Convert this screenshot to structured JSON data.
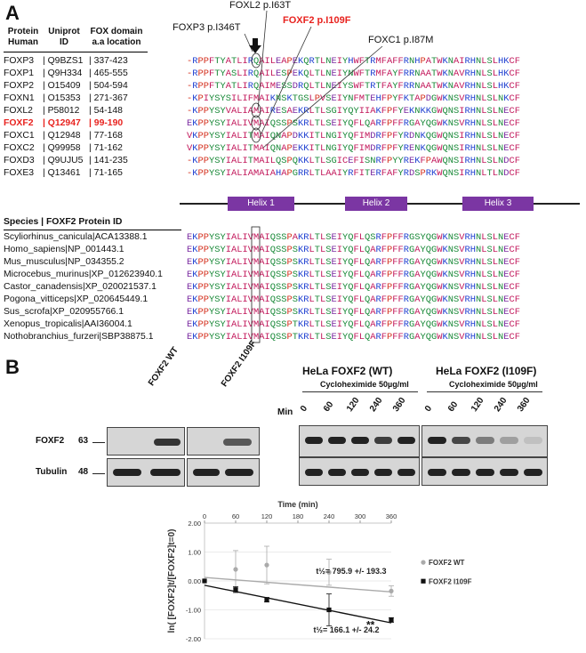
{
  "panel_a": {
    "letter": "A",
    "table_header": {
      "col1": "Protein\nHuman",
      "col2": "Uniprot\nID",
      "col3": "FOX domain\na.a location"
    },
    "proteins": [
      {
        "name": "FOXP3",
        "uniprot": "Q9BZS1",
        "loc": "337-423",
        "seq": "-RPPFTYATLIRQAILEAPEKQRTLNEIYHWFTRMFAFFRNHPATWKNAIRHNLSLHKCF",
        "highlight": false
      },
      {
        "name": "FOXP1",
        "uniprot": "Q9H334",
        "loc": "465-555",
        "seq": "-RPPFTYASLIRQAILESPEKQLTLNEIYNWFTRMFAYFRRNAATWKNAVRHNLSLHKCF",
        "highlight": false
      },
      {
        "name": "FOXP2",
        "uniprot": "O15409",
        "loc": "504-594",
        "seq": "-RPPFTYATLIRQAIMESSDRQLTLNEIYSWFTRTFAYFRRNAATWKNAVRHNLSLHKCF",
        "highlight": false
      },
      {
        "name": "FOXN1",
        "uniprot": "O15353",
        "loc": "271-367",
        "seq": "-KPIYSYSILIFMAIKNSKTGSLPVSEIYNFMTEHFPYFKTAPDGWKNSVRHNLSLNKCF",
        "highlight": false
      },
      {
        "name": "FOXL2",
        "uniprot": "P58012",
        "loc": "54-148",
        "seq": "-KPPYSYVALIAMAIRESAEKRLTLSGIYQYIIAKFPFYEKNKKGWQNSIRHNLSLNECF",
        "highlight": false
      },
      {
        "name": "FOXF2",
        "uniprot": "Q12947",
        "loc": "99-190",
        "seq": "EKPPYSYIALIVMAIQSSPSKRLTLSEIYQFLQARFPFFRGAYQGWKNSVRHNLSLNECF",
        "highlight": true
      },
      {
        "name": "FOXC1",
        "uniprot": "Q12948",
        "loc": "77-168",
        "seq": "VKPPYSYIALITMAIQNAPDKKITLNGIYQFIMDRFPFYRDNKQGWQNSIRHNLSLNECF",
        "highlight": false
      },
      {
        "name": "FOXC2",
        "uniprot": "Q99958",
        "loc": "71-162",
        "seq": "VKPPYSYIALITMAIQNAPEKKITLNGIYQFIMDRFPFYRENKQGWQNSIRHNLSLNECF",
        "highlight": false
      },
      {
        "name": "FOXD3",
        "uniprot": "Q9UJU5",
        "loc": "141-235",
        "seq": "-KPPYSYIALITMAILQSPQKKLTLSGICEFISNRFPYYREKFPAWQNSIRHNLSLNDCF",
        "highlight": false
      },
      {
        "name": "FOXE3",
        "uniprot": "Q13461",
        "loc": "71-165",
        "seq": "-KPPYSYIALIAMAIAHAPGRRLTLAAIYRFITERFAFYRDSPRKWQNSIRHNLTLNDCF",
        "highlight": false
      }
    ],
    "annotations": {
      "foxl2": "FOXL2 p.I63T",
      "foxp3": "FOXP3 p.I346T",
      "foxf2": "FOXF2 p.I109F",
      "foxc1": "FOXC1 p.I87M"
    },
    "helices": [
      "Helix 1",
      "Helix 2",
      "Helix 3"
    ],
    "species_header": "Species | FOXF2 Protein ID",
    "species": [
      {
        "name": "Scyliorhinus_canicula|ACA13388.1",
        "seq": "EKPPYSYIALIVMAIQSSPAKRLTLSEIYQFLQSRFPFFRGSYQGWKNSVRHNLSLNECF"
      },
      {
        "name": "Homo_sapiens|NP_001443.1",
        "seq": "EKPPYSYIALIVMAIQSSPSKRLTLSEIYQFLQARFPFFRGAYQGWKNSVRHNLSLNECF"
      },
      {
        "name": "Mus_musculus|NP_034355.2",
        "seq": "EKPPYSYIALIVMAIQSSPSKRLTLSEIYQFLQARFPFFRGAYQGWKNSVRHNLSLNECF"
      },
      {
        "name": "Microcebus_murinus|XP_012623940.1",
        "seq": "EKPPYSYIALIVMAIQSSPSKRLTLSEIYQFLQARFPFFRGAYQGWKNSVRHNLSLNECF"
      },
      {
        "name": "Castor_canadensis|XP_020021537.1",
        "seq": "EKPPYSYIALIVMAIQSSPSKRLTLSEIYQFLQARFPFFRGAYQGWKNSVRHNLSLNECF"
      },
      {
        "name": "Pogona_vitticeps|XP_020645449.1",
        "seq": "EKPPYSYIALIVMAIQSSPSKRLTLSEIYQFLQARFPFFRGAYQGWKNSVRHNLSLNECF"
      },
      {
        "name": "Sus_scrofa|XP_020955766.1",
        "seq": "EKPPYSYIALIVMAIQSSPSKRLTLSEIYQFLQARFPFFRGAYQGWKNSVRHNLSLNECF"
      },
      {
        "name": "Xenopus_tropicalis|AAI36004.1",
        "seq": "EKPPYSYIALIVMAIQSSPTKRLTLSEIYQFLQARFPFFRGAYQGWKNSVRHNLSLNECF"
      },
      {
        "name": "Nothobranchius_furzeri|SBP38875.1",
        "seq": "EKPPYSYIALIVMAIQSSPTKRLTLSEIYQFLQARFPFFRGAYQGWKNSVRHNLSLNECF"
      }
    ],
    "colors": {
      "hydrophobic": "#c2185b",
      "polar": "#1b8a3a",
      "positive": "#1e3fd0",
      "negative": "#7a2aa0",
      "other": "#d4301e",
      "helix": "#7b36a3"
    }
  },
  "panel_b": {
    "letter": "B",
    "lane_labels": {
      "wt": "FOXF2 WT",
      "mut": "FOXF2 I109F"
    },
    "row_labels": {
      "foxf2": "FOXF2",
      "tubulin": "Tubulin"
    },
    "mw": {
      "foxf2": "63",
      "tubulin": "48"
    },
    "hela_wt": {
      "title": "HeLa FOXF2 (WT)",
      "sub": "Cycloheximide 50µg/ml"
    },
    "hela_mut": {
      "title": "HeLa FOXF2 (I109F)",
      "sub": "Cycloheximide 50µg/ml"
    },
    "min_label": "Min",
    "timepoints": [
      "0",
      "60",
      "120",
      "240",
      "360"
    ],
    "wt_foxf2_levels": [
      1,
      1,
      1,
      0.85,
      1
    ],
    "mut_foxf2_levels": [
      1,
      0.8,
      0.5,
      0.3,
      0.12
    ]
  },
  "chart_data": {
    "type": "scatter",
    "title": "Time (min)",
    "xlabel": "Time (min)",
    "ylabel": "ln( [FOXF2]t/[FOXF2]t=0)",
    "xlim": [
      0,
      360
    ],
    "ylim": [
      -2.0,
      2.0
    ],
    "x_ticks": [
      "0",
      "60",
      "120",
      "180",
      "240",
      "300",
      "360"
    ],
    "y_ticks": [
      "2.00",
      "1.00",
      "0.00",
      "-1.00",
      "-2.00"
    ],
    "series": [
      {
        "name": "FOXF2 WT",
        "color": "#aaaaaa",
        "x": [
          0,
          60,
          120,
          240,
          360
        ],
        "y": [
          0.0,
          0.4,
          0.55,
          0.3,
          -0.35
        ],
        "err": [
          0,
          0.65,
          0.65,
          0.45,
          0.18
        ],
        "fit": [
          0.12,
          -0.38
        ]
      },
      {
        "name": "FOXF2 I109F",
        "color": "#111111",
        "x": [
          0,
          60,
          120,
          240,
          360
        ],
        "y": [
          0.0,
          -0.3,
          -0.65,
          -1.0,
          -1.35
        ],
        "err": [
          0,
          0.1,
          0.08,
          0.55,
          0.08
        ],
        "fit": [
          -0.15,
          -1.45
        ]
      }
    ],
    "annotations": {
      "wt_half": "t½= 795.9 +/- 193.3",
      "mut_half": "t½= 166.1 +/- 24.2",
      "sig": "**"
    },
    "legend_position": "right"
  }
}
